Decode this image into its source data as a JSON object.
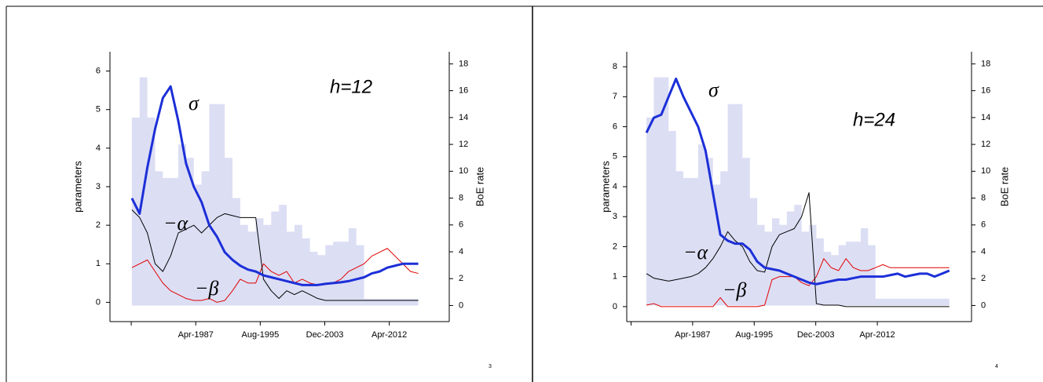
{
  "chart_data": [
    {
      "type": "line",
      "annotations": [
        "σ",
        "h=12",
        "−α",
        "−β"
      ],
      "ylabel": "parameters",
      "y2label": "BoE rate",
      "x": [
        "1979-01",
        "1980-01",
        "1981-01",
        "1982-01",
        "1983-01",
        "1984-01",
        "1985-01",
        "1986-01",
        "1987-01",
        "1988-01",
        "1989-01",
        "1990-01",
        "1991-01",
        "1992-01",
        "1993-01",
        "1994-01",
        "1995-01",
        "1996-01",
        "1997-01",
        "1998-01",
        "1999-01",
        "2000-01",
        "2001-01",
        "2002-01",
        "2003-01",
        "2004-01",
        "2005-01",
        "2006-01",
        "2007-01",
        "2008-01",
        "2009-01",
        "2010-01",
        "2011-01",
        "2012-01",
        "2013-01",
        "2014-01",
        "2015-01",
        "2016-01"
      ],
      "series": [
        {
          "kind": "area",
          "axis": "y2",
          "color": "#dcdef4",
          "values": [
            14,
            17,
            14,
            10,
            9.5,
            9.5,
            12,
            11,
            9,
            10,
            15,
            15,
            11,
            8,
            6,
            5.5,
            6.5,
            6,
            7,
            7.5,
            5.5,
            6,
            5,
            4,
            3.75,
            4.5,
            4.75,
            4.75,
            5.75,
            4.5,
            0.5,
            0.5,
            0.5,
            0.5,
            0.5,
            0.5,
            0.5,
            0.5
          ]
        },
        {
          "kind": "line",
          "color": "#e00000",
          "width": 1,
          "values": [
            0.9,
            1.0,
            1.1,
            0.8,
            0.5,
            0.3,
            0.2,
            0.1,
            0.05,
            0.05,
            0.1,
            0.0,
            0.05,
            0.3,
            0.6,
            0.5,
            0.5,
            1.0,
            0.8,
            0.7,
            0.8,
            0.5,
            0.6,
            0.5,
            0.45,
            0.5,
            0.5,
            0.6,
            0.8,
            0.9,
            1.0,
            1.2,
            1.3,
            1.4,
            1.2,
            1.0,
            0.8,
            0.75
          ]
        },
        {
          "kind": "line",
          "color": "#000000",
          "width": 1,
          "values": [
            2.4,
            2.2,
            1.8,
            1.0,
            0.8,
            1.2,
            1.8,
            1.9,
            2.0,
            1.8,
            2.0,
            2.2,
            2.3,
            2.25,
            2.2,
            2.2,
            2.2,
            0.6,
            0.3,
            0.1,
            0.3,
            0.2,
            0.3,
            0.2,
            0.1,
            0.05,
            0.05,
            0.05,
            0.05,
            0.05,
            0.05,
            0.05,
            0.05,
            0.05,
            0.05,
            0.05,
            0.05,
            0.05
          ]
        },
        {
          "kind": "line",
          "color": "#1c2fd8",
          "width": 3,
          "values": [
            2.7,
            2.3,
            3.5,
            4.5,
            5.3,
            5.6,
            4.7,
            3.6,
            3.0,
            2.6,
            2.0,
            1.7,
            1.3,
            1.1,
            0.95,
            0.85,
            0.8,
            0.7,
            0.65,
            0.6,
            0.55,
            0.5,
            0.45,
            0.45,
            0.45,
            0.48,
            0.5,
            0.52,
            0.55,
            0.6,
            0.65,
            0.75,
            0.8,
            0.9,
            0.95,
            1.0,
            1.0,
            1.0
          ]
        }
      ],
      "xlim": [
        "1976-03",
        "2020-01"
      ],
      "xticks": [
        {
          "value": "1978-12",
          "label": null
        },
        {
          "value": "1987-04",
          "label": "Apr-1987"
        },
        {
          "value": "1995-08",
          "label": "Aug-1995"
        },
        {
          "value": "2003-12",
          "label": "Dec-2003"
        },
        {
          "value": "2012-04",
          "label": "Apr-2012"
        }
      ],
      "ylim": [
        -0.5,
        6.5
      ],
      "yticks": [
        0,
        1,
        2,
        3,
        4,
        5,
        6
      ],
      "y2lim": [
        -1.2,
        18.9
      ],
      "y2ticks": [
        0,
        2,
        4,
        6,
        8,
        10,
        12,
        14,
        16,
        18
      ]
    },
    {
      "type": "line",
      "annotations": [
        "σ",
        "h=24",
        "−α",
        "−β"
      ],
      "ylabel": "parameters",
      "y2label": "BoE rate",
      "x": [
        "1981-01",
        "1982-01",
        "1983-01",
        "1984-01",
        "1985-01",
        "1986-01",
        "1987-01",
        "1988-01",
        "1989-01",
        "1990-01",
        "1991-01",
        "1992-01",
        "1993-01",
        "1994-01",
        "1995-01",
        "1996-01",
        "1997-01",
        "1998-01",
        "1999-01",
        "2000-01",
        "2001-01",
        "2002-01",
        "2003-01",
        "2004-01",
        "2005-01",
        "2006-01",
        "2007-01",
        "2008-01",
        "2009-01",
        "2010-01",
        "2011-01",
        "2012-01",
        "2013-01",
        "2014-01",
        "2015-01",
        "2016-01",
        "2017-01",
        "2018-01",
        "2019-01",
        "2020-01",
        "2021-01",
        "2022-01"
      ],
      "series": [
        {
          "kind": "area",
          "axis": "y2",
          "color": "#dcdef4",
          "values": [
            14,
            17,
            17,
            13,
            10,
            9.5,
            9.5,
            12,
            11,
            9,
            10,
            15,
            15,
            11,
            8,
            6,
            5.5,
            6.5,
            6,
            7,
            7.5,
            5.5,
            6,
            5,
            4,
            3.75,
            4.5,
            4.75,
            4.75,
            5.75,
            4.5,
            0.5,
            0.5,
            0.5,
            0.5,
            0.5,
            0.5,
            0.5,
            0.5,
            0.5,
            0.5,
            0.5
          ]
        },
        {
          "kind": "line",
          "color": "#e00000",
          "width": 1,
          "values": [
            0.05,
            0.1,
            0.0,
            0.0,
            0.0,
            0.0,
            0.0,
            0.0,
            0.0,
            0.0,
            0.3,
            0.0,
            0.0,
            0.0,
            0.0,
            0.0,
            0.05,
            0.9,
            1.0,
            1.0,
            1.0,
            0.8,
            0.7,
            1.0,
            1.6,
            1.3,
            1.2,
            1.6,
            1.3,
            1.2,
            1.2,
            1.3,
            1.4,
            1.3,
            1.3,
            1.3,
            1.3,
            1.3,
            1.3,
            1.3,
            1.3,
            1.3
          ]
        },
        {
          "kind": "line",
          "color": "#000000",
          "width": 1,
          "values": [
            1.1,
            0.95,
            0.9,
            0.85,
            0.9,
            0.95,
            1.0,
            1.1,
            1.3,
            1.6,
            2.0,
            2.5,
            2.2,
            2.0,
            1.5,
            1.2,
            1.15,
            2.0,
            2.4,
            2.5,
            2.6,
            3.0,
            3.8,
            0.1,
            0.05,
            0.05,
            0.05,
            0.0,
            0.0,
            0.0,
            0.0,
            0.0,
            0.0,
            0.0,
            0.0,
            0.0,
            0.0,
            0.0,
            0.0,
            0.0,
            0.0,
            0.0
          ]
        },
        {
          "kind": "line",
          "color": "#1c2fd8",
          "width": 3,
          "values": [
            5.8,
            6.3,
            6.4,
            7.0,
            7.6,
            7.0,
            6.5,
            6.0,
            5.2,
            3.8,
            2.4,
            2.2,
            2.1,
            2.1,
            1.9,
            1.5,
            1.3,
            1.25,
            1.2,
            1.1,
            1.0,
            0.9,
            0.8,
            0.75,
            0.8,
            0.85,
            0.9,
            0.9,
            0.95,
            1.0,
            1.0,
            1.0,
            1.0,
            1.05,
            1.1,
            1.0,
            1.05,
            1.1,
            1.1,
            1.0,
            1.1,
            1.2
          ]
        }
      ],
      "xlim": [
        "1978-05",
        "2025-01"
      ],
      "xticks": [
        {
          "value": "1978-12",
          "label": null
        },
        {
          "value": "1987-04",
          "label": "Apr-1987"
        },
        {
          "value": "1995-08",
          "label": "Aug-1995"
        },
        {
          "value": "2003-12",
          "label": "Dec-2003"
        },
        {
          "value": "2012-04",
          "label": "Apr-2012"
        }
      ],
      "ylim": [
        -0.5,
        8.5
      ],
      "yticks": [
        0,
        1,
        2,
        3,
        4,
        5,
        6,
        7,
        8
      ],
      "y2lim": [
        -1.2,
        18.9
      ],
      "y2ticks": [
        0,
        2,
        4,
        6,
        8,
        10,
        12,
        14,
        16,
        18
      ]
    }
  ],
  "slide_numbers": [
    "3",
    "4"
  ]
}
